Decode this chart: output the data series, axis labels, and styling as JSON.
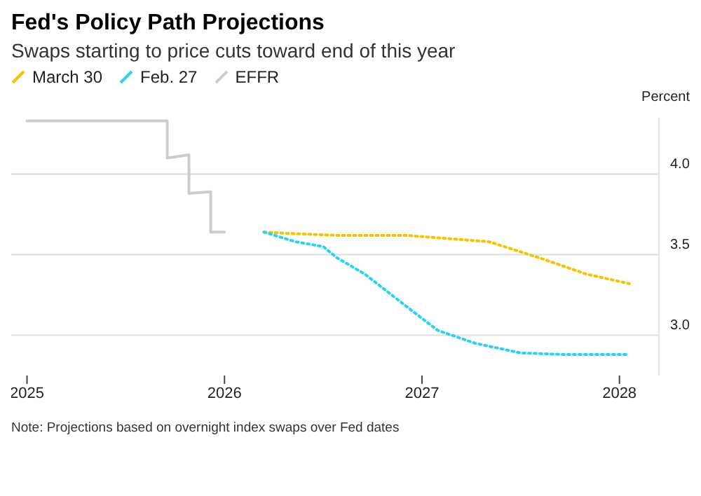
{
  "chart_data": {
    "type": "line",
    "title": "Fed's Policy Path Projections",
    "subtitle": "Swaps starting to price cuts toward end of this year",
    "ylabel": "Percent",
    "series": [
      {
        "name": "March 30",
        "color": "#f2c500",
        "line_style": "dotted",
        "x": [
          2026.2,
          2026.36,
          2026.57,
          2026.92,
          2027.34,
          2027.62,
          2027.83,
          2028.05
        ],
        "values": [
          3.64,
          3.63,
          3.62,
          3.62,
          3.58,
          3.47,
          3.38,
          3.32
        ]
      },
      {
        "name": "Feb. 27",
        "color": "#2ad4ee",
        "line_style": "dotted",
        "x": [
          2026.2,
          2026.36,
          2026.5,
          2026.57,
          2026.71,
          2026.92,
          2027.08,
          2027.27,
          2027.5,
          2027.73,
          2028.05
        ],
        "values": [
          3.64,
          3.58,
          3.55,
          3.48,
          3.38,
          3.18,
          3.03,
          2.95,
          2.89,
          2.88,
          2.88
        ]
      },
      {
        "name": "EFFR",
        "color": "#cccccc",
        "line_style": "solid",
        "x": [
          2025.0,
          2025.71,
          2025.71,
          2025.82,
          2025.82,
          2025.93,
          2025.93,
          2026.0
        ],
        "values": [
          4.33,
          4.33,
          4.1,
          4.12,
          3.88,
          3.89,
          3.64,
          3.64
        ]
      }
    ],
    "xlim": [
      2024.92,
      2028.2
    ],
    "xticks": [
      2025,
      2026,
      2027,
      2028
    ],
    "ylim": [
      2.75,
      4.35
    ],
    "yticks": [
      {
        "value": 3,
        "label": "3.0"
      },
      3.5,
      {
        "value": 4,
        "label": "4.0"
      }
    ],
    "grid": "y",
    "legend": "top left",
    "marker": "none",
    "annotations": [
      "Note: Projections based on overnight index swaps over Fed dates"
    ]
  }
}
